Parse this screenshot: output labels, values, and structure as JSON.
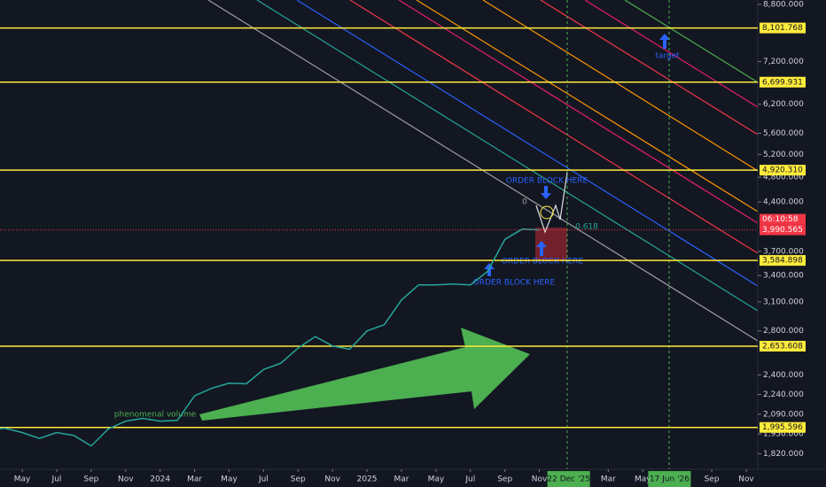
{
  "chart_data": {
    "type": "line",
    "log_scale": true,
    "color": "#26a69a",
    "x": [
      "2023-03",
      "2023-04",
      "2023-05",
      "2023-06",
      "2023-07",
      "2023-08",
      "2023-09",
      "2023-10",
      "2023-11",
      "2023-12",
      "2024-01",
      "2024-02",
      "2024-03",
      "2024-04",
      "2024-05",
      "2024-06",
      "2024-07",
      "2024-08",
      "2024-09",
      "2024-10",
      "2024-11",
      "2024-12",
      "2025-01",
      "2025-02",
      "2025-03",
      "2025-04",
      "2025-05",
      "2025-06",
      "2025-07",
      "2025-08",
      "2025-09",
      "2025-10",
      "2025-11"
    ],
    "values": [
      1980,
      1990,
      1960,
      1920,
      1960,
      1940,
      1870,
      1985,
      2040,
      2060,
      2040,
      2045,
      2230,
      2290,
      2330,
      2325,
      2445,
      2500,
      2635,
      2745,
      2655,
      2625,
      2800,
      2860,
      3120,
      3290,
      3290,
      3300,
      3290,
      3450,
      3860,
      4000,
      3990.565
    ],
    "xlim": [
      2.71,
      46.67
    ],
    "xticks": [
      {
        "value": 4,
        "label": "May"
      },
      {
        "value": 6,
        "label": "Jul"
      },
      {
        "value": 8,
        "label": "Sep"
      },
      {
        "value": 10,
        "label": "Nov"
      },
      {
        "value": 12,
        "label": "2024"
      },
      {
        "value": 14,
        "label": "Mar"
      },
      {
        "value": 16,
        "label": "May"
      },
      {
        "value": 18,
        "label": "Jul"
      },
      {
        "value": 20,
        "label": "Sep"
      },
      {
        "value": 22,
        "label": "Nov"
      },
      {
        "value": 24,
        "label": "2025"
      },
      {
        "value": 26,
        "label": "Mar"
      },
      {
        "value": 28,
        "label": "May"
      },
      {
        "value": 30,
        "label": "Jul"
      },
      {
        "value": 32,
        "label": "Sep"
      },
      {
        "value": 34,
        "label": "Nov"
      },
      {
        "value": 38,
        "label": "Mar"
      },
      {
        "value": 40,
        "label": "May"
      },
      {
        "value": 44,
        "label": "Sep"
      },
      {
        "value": 46,
        "label": "Nov"
      }
    ],
    "x_markers": [
      {
        "value": 35.7,
        "label": "22 Dec '25"
      },
      {
        "value": 41.55,
        "label": "17 Jun '26"
      }
    ],
    "ylim": [
      1723,
      8937
    ],
    "yticks": [
      {
        "value": 8800,
        "label": "8,800.000"
      },
      {
        "value": 7200,
        "label": "7,200.000"
      },
      {
        "value": 6200,
        "label": "6,200.000"
      },
      {
        "value": 5600,
        "label": "5,600.000"
      },
      {
        "value": 5200,
        "label": "5,200.000"
      },
      {
        "value": 4800,
        "label": "4,800.000"
      },
      {
        "value": 4400,
        "label": "4,400.000"
      },
      {
        "value": 3700,
        "label": "3,700.000"
      },
      {
        "value": 3400,
        "label": "3,400.000"
      },
      {
        "value": 3100,
        "label": "3,100.000"
      },
      {
        "value": 2800,
        "label": "2,800.000"
      },
      {
        "value": 2400,
        "label": "2,400.000"
      },
      {
        "value": 2240,
        "label": "2,240.000"
      },
      {
        "value": 2090,
        "label": "2,090.000"
      },
      {
        "value": 1950,
        "label": "1,950.000"
      },
      {
        "value": 1820,
        "label": "1,820.000"
      }
    ],
    "levels": [
      {
        "value": 8101.768,
        "label": "8,101.768"
      },
      {
        "value": 6699.931,
        "label": "6,699.931"
      },
      {
        "value": 4920.31,
        "label": "4,920.310"
      },
      {
        "value": 3584.898,
        "label": "3,584.898"
      },
      {
        "value": 2653.608,
        "label": "2,653.608"
      },
      {
        "value": 1995.596,
        "label": "1,995.596"
      }
    ],
    "level_color": "#ffeb3b",
    "last_price": {
      "value": 3990.565,
      "label": "3,990.565"
    },
    "countdown": "06:10:58",
    "annotations": [
      "ORDER BLOCK HERE",
      "ORDER BLOCK HERE",
      "ORDER BLOCK HERE",
      "target",
      "phenomenal volume",
      "0",
      "0.618"
    ]
  }
}
